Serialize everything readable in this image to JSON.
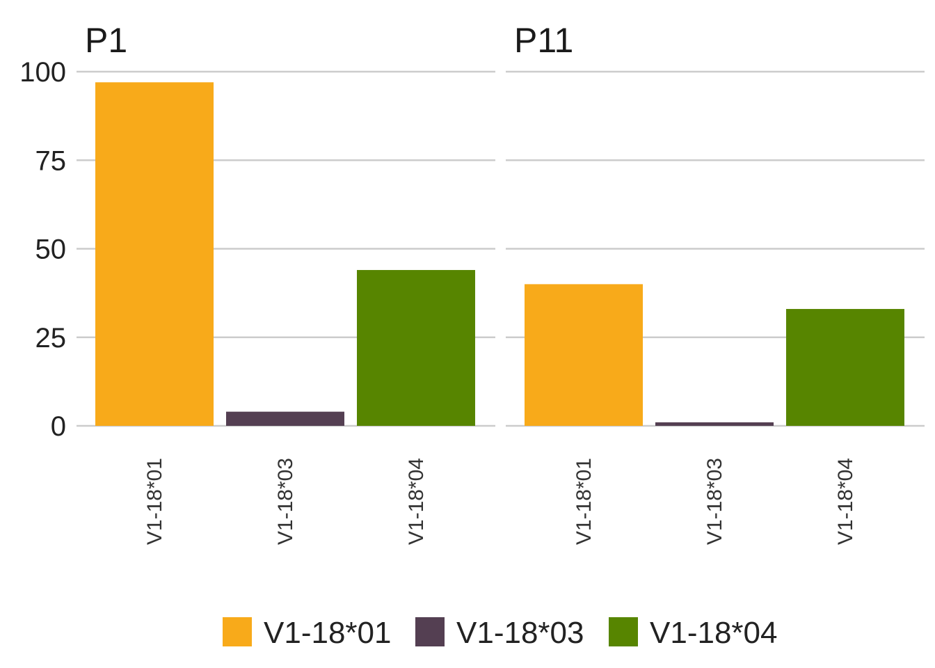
{
  "chart_data": {
    "type": "bar",
    "facets": [
      "P1",
      "P11"
    ],
    "categories": [
      "V1-18*01",
      "V1-18*03",
      "V1-18*04"
    ],
    "values": {
      "P1": [
        97,
        4,
        44
      ],
      "P11": [
        40,
        1,
        33
      ]
    },
    "ylim": [
      0,
      100
    ],
    "yticks": [
      0,
      25,
      50,
      75,
      100
    ],
    "grid": "horizontal",
    "legend": {
      "position": "bottom",
      "entries": [
        "V1-18*01",
        "V1-18*03",
        "V1-18*04"
      ]
    },
    "colors": [
      "#F8AA1A",
      "#543F52",
      "#578500"
    ]
  }
}
